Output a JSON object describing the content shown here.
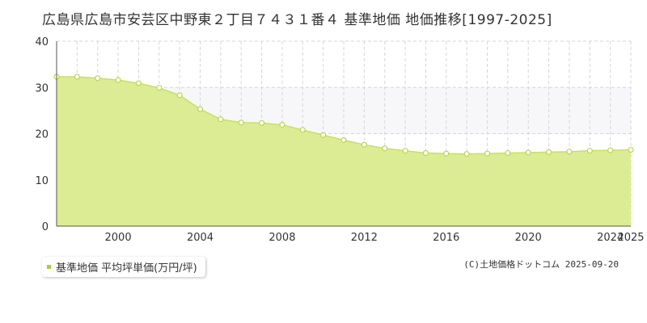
{
  "title": "広島県広島市安芸区中野東２丁目７４３１番４ 基準地価 地価推移[1997-2025]",
  "legend_label": "基準地価 平均坪単価(万円/坪)",
  "credit": "(C)土地価格ドットコム 2025-09-20",
  "colors": {
    "fill": "#dcec94",
    "line": "#c8e060",
    "marker_stroke": "#b7d74a",
    "legend_marker": "#a8cf38",
    "band": "#f7f7f9",
    "grid": "#d6d6d6",
    "axis": "#555555"
  },
  "chart_data": {
    "type": "area",
    "title": "",
    "xlabel": "",
    "ylabel": "",
    "xlim": [
      1997,
      2025
    ],
    "ylim": [
      0,
      40
    ],
    "yticks": [
      0,
      10,
      20,
      30,
      40
    ],
    "xtick_labels": [
      "2000",
      "2004",
      "2008",
      "2012",
      "2016",
      "2020",
      "2024",
      "2025"
    ],
    "grid": true,
    "legend_position": "bottom-left",
    "series": [
      {
        "name": "基準地価 平均坪単価(万円/坪)",
        "x": [
          1997,
          1998,
          1999,
          2000,
          2001,
          2002,
          2003,
          2004,
          2005,
          2006,
          2007,
          2008,
          2009,
          2010,
          2011,
          2012,
          2013,
          2014,
          2015,
          2016,
          2017,
          2018,
          2019,
          2020,
          2021,
          2022,
          2023,
          2024,
          2025
        ],
        "values": [
          32.3,
          32.3,
          32.0,
          31.6,
          30.9,
          29.9,
          28.3,
          25.3,
          23.1,
          22.4,
          22.3,
          21.9,
          20.8,
          19.7,
          18.6,
          17.6,
          16.8,
          16.3,
          15.8,
          15.7,
          15.6,
          15.7,
          15.8,
          15.9,
          16.0,
          16.1,
          16.3,
          16.4,
          16.5
        ]
      }
    ]
  }
}
